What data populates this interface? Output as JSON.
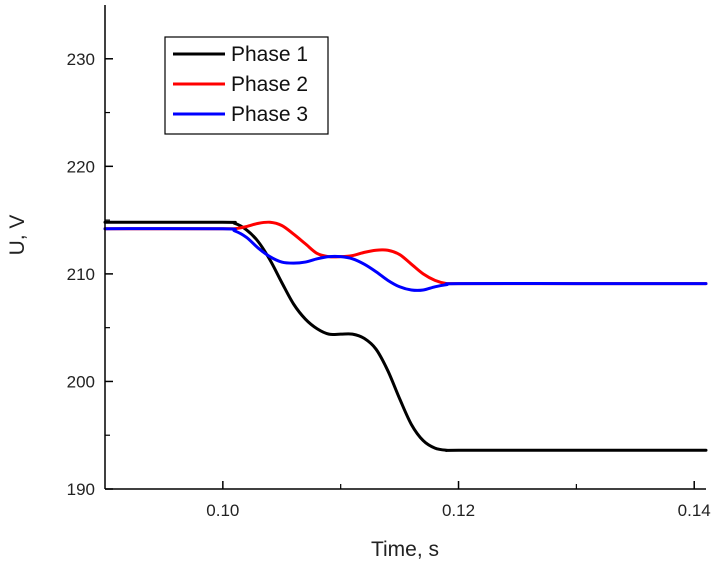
{
  "chart_data": {
    "type": "line",
    "title": "",
    "xlabel": "Time, s",
    "ylabel": "U, V",
    "xlim": [
      0.09,
      0.141
    ],
    "ylim": [
      190,
      235
    ],
    "x_ticks": [
      0.1,
      0.12,
      0.14
    ],
    "x_tick_labels": [
      "0.10",
      "0.12",
      "0.14"
    ],
    "y_ticks": [
      190,
      200,
      210,
      220,
      230
    ],
    "y_tick_labels": [
      "190",
      "200",
      "210",
      "220",
      "230"
    ],
    "grid": false,
    "legend_position": "top-left",
    "series": [
      {
        "name": "Phase 1",
        "color": "#000000",
        "points": [
          [
            0.09,
            214.8
          ],
          [
            0.1,
            214.8
          ],
          [
            0.101,
            214.7
          ],
          [
            0.102,
            214.1
          ],
          [
            0.103,
            213.0
          ],
          [
            0.104,
            211.3
          ],
          [
            0.105,
            209.2
          ],
          [
            0.106,
            207.2
          ],
          [
            0.107,
            205.8
          ],
          [
            0.108,
            204.9
          ],
          [
            0.109,
            204.4
          ],
          [
            0.11,
            204.4
          ],
          [
            0.111,
            204.4
          ],
          [
            0.112,
            204.0
          ],
          [
            0.113,
            203.0
          ],
          [
            0.114,
            201.0
          ],
          [
            0.115,
            198.4
          ],
          [
            0.116,
            196.0
          ],
          [
            0.117,
            194.5
          ],
          [
            0.118,
            193.8
          ],
          [
            0.119,
            193.6
          ],
          [
            0.12,
            193.6
          ],
          [
            0.13,
            193.6
          ],
          [
            0.141,
            193.6
          ]
        ]
      },
      {
        "name": "Phase 2",
        "color": "#ff0000",
        "points": [
          [
            0.09,
            214.2
          ],
          [
            0.1,
            214.2
          ],
          [
            0.101,
            214.2
          ],
          [
            0.102,
            214.4
          ],
          [
            0.103,
            214.7
          ],
          [
            0.104,
            214.8
          ],
          [
            0.105,
            214.5
          ],
          [
            0.106,
            213.7
          ],
          [
            0.107,
            212.8
          ],
          [
            0.108,
            211.9
          ],
          [
            0.109,
            211.6
          ],
          [
            0.11,
            211.6
          ],
          [
            0.111,
            211.7
          ],
          [
            0.112,
            212.0
          ],
          [
            0.113,
            212.2
          ],
          [
            0.114,
            212.2
          ],
          [
            0.115,
            211.8
          ],
          [
            0.116,
            210.9
          ],
          [
            0.117,
            210.0
          ],
          [
            0.118,
            209.4
          ],
          [
            0.119,
            209.1
          ],
          [
            0.12,
            209.1
          ],
          [
            0.13,
            209.1
          ],
          [
            0.141,
            209.1
          ]
        ]
      },
      {
        "name": "Phase 3",
        "color": "#0000ff",
        "points": [
          [
            0.09,
            214.2
          ],
          [
            0.1,
            214.2
          ],
          [
            0.101,
            214.0
          ],
          [
            0.102,
            213.4
          ],
          [
            0.103,
            212.4
          ],
          [
            0.104,
            211.6
          ],
          [
            0.105,
            211.1
          ],
          [
            0.106,
            211.0
          ],
          [
            0.107,
            211.1
          ],
          [
            0.108,
            211.4
          ],
          [
            0.109,
            211.6
          ],
          [
            0.11,
            211.6
          ],
          [
            0.111,
            211.4
          ],
          [
            0.112,
            210.9
          ],
          [
            0.113,
            210.2
          ],
          [
            0.114,
            209.4
          ],
          [
            0.115,
            208.8
          ],
          [
            0.116,
            208.5
          ],
          [
            0.117,
            208.5
          ],
          [
            0.118,
            208.8
          ],
          [
            0.119,
            209.0
          ],
          [
            0.12,
            209.1
          ],
          [
            0.13,
            209.1
          ],
          [
            0.141,
            209.1
          ]
        ]
      }
    ]
  }
}
